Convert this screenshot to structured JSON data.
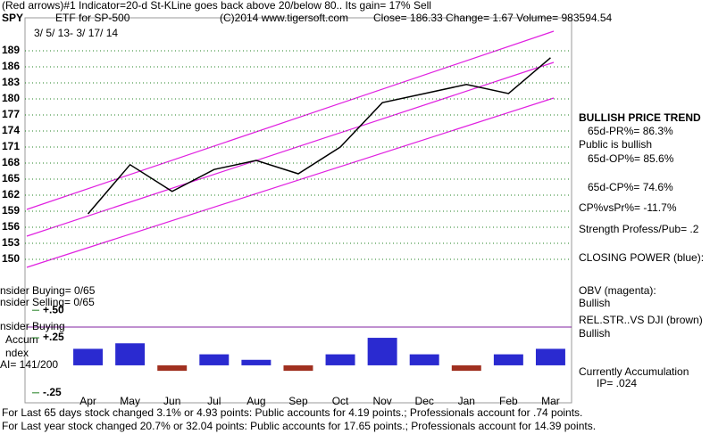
{
  "header": {
    "line1": "(Red arrows)#1 Indicator=20-d St-KLine goes back above 20/below 80.. Its gain= 17% Sell",
    "symbol": "SPY",
    "name": "ETF for SP-500",
    "copyright": "(C)2014 www.tigersoft.com",
    "quote": "Close=  186.33  Change=  1.67 Volume=  983594.54",
    "dates": "3/ 5/ 13- 3/ 17/ 14"
  },
  "left_labels": [
    "nsider Buying= 0/65",
    "nsider Selling= 0/65",
    "nsider Buying",
    "Accum",
    "ndex",
    "AI= 141/200"
  ],
  "side": [
    "BULLISH PRICE TREND",
    "65d-PR%= 86.3%",
    "Public is bullish",
    "65d-OP%= 85.6%",
    "65d-CP%= 74.6%",
    "CP%vsPr%= -11.7%",
    "Strength Profess/Pub= .2",
    "CLOSING POWER (blue):",
    "OBV (magenta):",
    "Bullish",
    "REL.STR..VS DJI (brown)",
    "Bullish",
    "Currently Accumulation",
    "IP=  .024"
  ],
  "footer": [
    "For Last 65 days stock changed  3.1% or  4.93 points:  Public accounts for  4.19 points.;  Professionals account for  .74 points.",
    "For Last year stock changed  20.7% or  32.04 points:  Public accounts for  17.65 points.;  Professionals account for  14.39 points."
  ],
  "chart_data": [
    {
      "type": "line",
      "categories": [
        "Apr",
        "May",
        "Jun",
        "Jul",
        "Aug",
        "Sep",
        "Oct",
        "Nov",
        "Dec",
        "Jan",
        "Feb",
        "Mar"
      ],
      "series": [
        {
          "name": "SPY",
          "color": "#000000",
          "values": [
            158.5,
            167.7,
            162.7,
            166.8,
            168.5,
            166,
            171,
            179.3,
            181,
            182.7,
            181,
            187.7
          ]
        }
      ],
      "ylim": [
        145,
        192
      ],
      "yticks": [
        150,
        153,
        156,
        159,
        162,
        165,
        168,
        171,
        174,
        177,
        180,
        183,
        186,
        189
      ],
      "grid": true
    },
    {
      "type": "bar",
      "values": [
        0.15,
        0.2,
        -0.05,
        0.1,
        0.05,
        -0.05,
        0.1,
        0.25,
        0.1,
        -0.05,
        0.1,
        0.15
      ],
      "color": "#2a2ad0",
      "negative_color": "#a03020",
      "ylim": [
        -0.3,
        0.55
      ],
      "yticks": [
        {
          "value": 0.5,
          "label": "+.50"
        },
        {
          "value": 0.25,
          "label": "+.25"
        },
        {
          "value": -0.25,
          "label": "-.25"
        }
      ]
    }
  ]
}
